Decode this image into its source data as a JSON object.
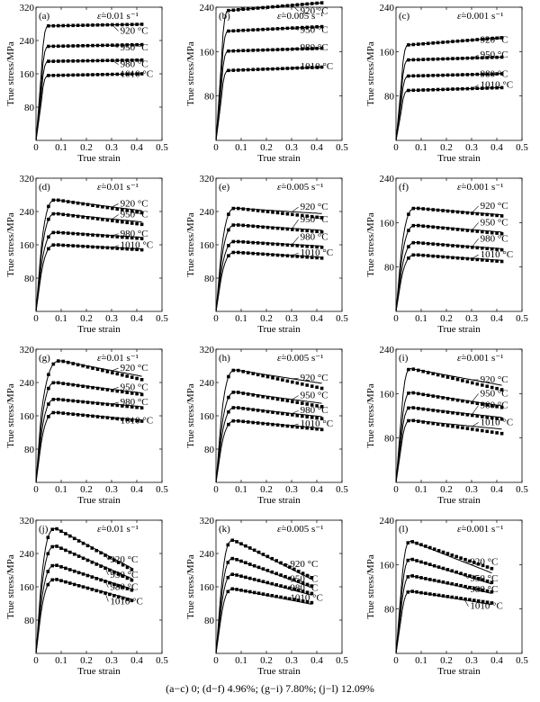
{
  "figure": {
    "caption": "(a−c) 0; (d−f) 4.96%; (g−i) 7.80%; (j−l) 12.09%",
    "xlabel": "True strain",
    "ylabel": "True stress/MPa",
    "rate_symbol": "ε̇"
  },
  "chart_data": [
    {
      "type": "line",
      "id": "a",
      "label": "(a)",
      "rate": "=0.01 s⁻¹",
      "xlim": [
        0,
        0.5
      ],
      "ylim": [
        0,
        320
      ],
      "xticks": [
        "0",
        "0.1",
        "0.2",
        "0.3",
        "0.4",
        "0.5"
      ],
      "yticks": [
        "80",
        "160",
        "240",
        "320"
      ],
      "xlabel": "True strain",
      "ylabel": "True stress/MPa",
      "xmax_data": 0.42,
      "series": [
        {
          "name": "920 °C",
          "label_y": 256,
          "peak": 275,
          "peak_x": 0.05,
          "end": 279,
          "offset": 0
        },
        {
          "name": "950 °C",
          "label_y": 216,
          "peak": 226,
          "peak_x": 0.05,
          "end": 230,
          "offset": 0
        },
        {
          "name": "980 °C",
          "label_y": 176,
          "peak": 190,
          "peak_x": 0.05,
          "end": 193,
          "offset": 0
        },
        {
          "name": "1010 °C",
          "label_y": 152,
          "peak": 156,
          "peak_x": 0.05,
          "end": 160,
          "offset": 0
        }
      ]
    },
    {
      "type": "line",
      "id": "b",
      "label": "(b)",
      "rate": "=0.005 s⁻¹",
      "xlim": [
        0,
        0.5
      ],
      "ylim": [
        0,
        240
      ],
      "xticks": [
        "0",
        "0.1",
        "0.2",
        "0.3",
        "0.4",
        "0.5"
      ],
      "yticks": [
        "80",
        "160",
        "240"
      ],
      "xlabel": "True strain",
      "ylabel": "True stress/MPa",
      "xmax_data": 0.42,
      "series": [
        {
          "name": "920 °C",
          "label_y": 228,
          "peak": 234,
          "peak_x": 0.05,
          "end": 248,
          "offset": 0
        },
        {
          "name": "950 °C",
          "label_y": 194,
          "peak": 197,
          "peak_x": 0.05,
          "end": 205,
          "offset": 0
        },
        {
          "name": "980 °C",
          "label_y": 162,
          "peak": 161,
          "peak_x": 0.05,
          "end": 166,
          "offset": 0
        },
        {
          "name": "1010 °C",
          "label_y": 128,
          "peak": 126,
          "peak_x": 0.05,
          "end": 132,
          "offset": 0
        }
      ]
    },
    {
      "type": "line",
      "id": "c",
      "label": "(c)",
      "rate": "=0.001 s⁻¹",
      "xlim": [
        0,
        0.5
      ],
      "ylim": [
        0,
        240
      ],
      "xticks": [
        "0",
        "0.1",
        "0.2",
        "0.3",
        "0.4",
        "0.5"
      ],
      "yticks": [
        "80",
        "160",
        "240"
      ],
      "xlabel": "True strain",
      "ylabel": "True stress/MPa",
      "xmax_data": 0.42,
      "series": [
        {
          "name": "920 °C",
          "label_y": 176,
          "peak": 172,
          "peak_x": 0.05,
          "end": 185,
          "offset": 0
        },
        {
          "name": "950 °C",
          "label_y": 149,
          "peak": 145,
          "peak_x": 0.05,
          "end": 150,
          "offset": 0
        },
        {
          "name": "980 °C",
          "label_y": 114,
          "peak": 116,
          "peak_x": 0.05,
          "end": 120,
          "offset": 0
        },
        {
          "name": "1010 °C",
          "label_y": 95,
          "peak": 90,
          "peak_x": 0.05,
          "end": 95,
          "offset": 0
        }
      ]
    },
    {
      "type": "line",
      "id": "d",
      "label": "(d)",
      "rate": "=0.01 s⁻¹",
      "xlim": [
        0,
        0.5
      ],
      "ylim": [
        0,
        320
      ],
      "xticks": [
        "0",
        "0.1",
        "0.2",
        "0.3",
        "0.4",
        "0.5"
      ],
      "yticks": [
        "80",
        "160",
        "240",
        "320"
      ],
      "xlabel": "True strain",
      "ylabel": "True stress/MPa",
      "xmax_data": 0.42,
      "series": [
        {
          "name": "920 °C",
          "label_y": 252,
          "peak": 268,
          "peak_x": 0.08,
          "end": 242,
          "offset": -5
        },
        {
          "name": "950 °C",
          "label_y": 226,
          "peak": 235,
          "peak_x": 0.08,
          "end": 215,
          "offset": -6
        },
        {
          "name": "980 °C",
          "label_y": 180,
          "peak": 190,
          "peak_x": 0.08,
          "end": 178,
          "offset": -3
        },
        {
          "name": "1010 °C",
          "label_y": 152,
          "peak": 160,
          "peak_x": 0.08,
          "end": 150,
          "offset": -2
        }
      ]
    },
    {
      "type": "line",
      "id": "e",
      "label": "(e)",
      "rate": "=0.005 s⁻¹",
      "xlim": [
        0,
        0.5
      ],
      "ylim": [
        0,
        320
      ],
      "xticks": [
        "0",
        "0.1",
        "0.2",
        "0.3",
        "0.4",
        "0.5"
      ],
      "yticks": [
        "80",
        "160",
        "240",
        "320"
      ],
      "xlabel": "True strain",
      "ylabel": "True stress/MPa",
      "xmax_data": 0.42,
      "series": [
        {
          "name": "920 °C",
          "label_y": 244,
          "peak": 248,
          "peak_x": 0.08,
          "end": 235,
          "offset": -10
        },
        {
          "name": "950 °C",
          "label_y": 214,
          "peak": 208,
          "peak_x": 0.08,
          "end": 195,
          "offset": -4
        },
        {
          "name": "980 °C",
          "label_y": 172,
          "peak": 168,
          "peak_x": 0.08,
          "end": 157,
          "offset": -3
        },
        {
          "name": "1010 °C",
          "label_y": 134,
          "peak": 142,
          "peak_x": 0.08,
          "end": 130,
          "offset": -2
        }
      ]
    },
    {
      "type": "line",
      "id": "f",
      "label": "(f)",
      "rate": "=0.001 s⁻¹",
      "xlim": [
        0,
        0.5
      ],
      "ylim": [
        0,
        240
      ],
      "xticks": [
        "0",
        "0.1",
        "0.2",
        "0.3",
        "0.4",
        "0.5"
      ],
      "yticks": [
        "80",
        "160",
        "240"
      ],
      "xlabel": "True strain",
      "ylabel": "True stress/MPa",
      "xmax_data": 0.42,
      "series": [
        {
          "name": "920 °C",
          "label_y": 185,
          "peak": 186,
          "peak_x": 0.08,
          "end": 174,
          "offset": -2
        },
        {
          "name": "950 °C",
          "label_y": 155,
          "peak": 155,
          "peak_x": 0.08,
          "end": 143,
          "offset": -3
        },
        {
          "name": "980 °C",
          "label_y": 126,
          "peak": 124,
          "peak_x": 0.08,
          "end": 113,
          "offset": -2
        },
        {
          "name": "1010 °C",
          "label_y": 97,
          "peak": 102,
          "peak_x": 0.08,
          "end": 92,
          "offset": -2
        }
      ]
    },
    {
      "type": "line",
      "id": "g",
      "label": "(g)",
      "rate": "=0.01 s⁻¹",
      "xlim": [
        0,
        0.5
      ],
      "ylim": [
        0,
        320
      ],
      "xticks": [
        "0",
        "0.1",
        "0.2",
        "0.3",
        "0.4",
        "0.5"
      ],
      "yticks": [
        "80",
        "160",
        "240",
        "320"
      ],
      "xlabel": "True strain",
      "ylabel": "True stress/MPa",
      "xmax_data": 0.42,
      "series": [
        {
          "name": "920 °C",
          "label_y": 268,
          "peak": 292,
          "peak_x": 0.1,
          "end": 255,
          "offset": -8
        },
        {
          "name": "950 °C",
          "label_y": 222,
          "peak": 240,
          "peak_x": 0.08,
          "end": 215,
          "offset": -4
        },
        {
          "name": "980 °C",
          "label_y": 186,
          "peak": 200,
          "peak_x": 0.08,
          "end": 182,
          "offset": -3
        },
        {
          "name": "1010 °C",
          "label_y": 142,
          "peak": 168,
          "peak_x": 0.08,
          "end": 150,
          "offset": -3
        }
      ]
    },
    {
      "type": "line",
      "id": "h",
      "label": "(h)",
      "rate": "=0.005 s⁻¹",
      "xlim": [
        0,
        0.5
      ],
      "ylim": [
        0,
        320
      ],
      "xticks": [
        "0",
        "0.1",
        "0.2",
        "0.3",
        "0.4",
        "0.5"
      ],
      "yticks": [
        "80",
        "160",
        "240",
        "320"
      ],
      "xlabel": "True strain",
      "ylabel": "True stress/MPa",
      "xmax_data": 0.42,
      "series": [
        {
          "name": "920 °C",
          "label_y": 244,
          "peak": 270,
          "peak_x": 0.08,
          "end": 238,
          "offset": -12
        },
        {
          "name": "950 °C",
          "label_y": 202,
          "peak": 217,
          "peak_x": 0.08,
          "end": 190,
          "offset": -8
        },
        {
          "name": "980 °C",
          "label_y": 166,
          "peak": 180,
          "peak_x": 0.08,
          "end": 158,
          "offset": -5
        },
        {
          "name": "1010 °C",
          "label_y": 134,
          "peak": 148,
          "peak_x": 0.08,
          "end": 130,
          "offset": -3
        }
      ]
    },
    {
      "type": "line",
      "id": "i",
      "label": "(i)",
      "rate": "=0.001 s⁻¹",
      "xlim": [
        0,
        0.5
      ],
      "ylim": [
        0,
        240
      ],
      "xticks": [
        "0",
        "0.1",
        "0.2",
        "0.3",
        "0.4",
        "0.5"
      ],
      "yticks": [
        "80",
        "160",
        "240"
      ],
      "xlabel": "True strain",
      "ylabel": "True stress/MPa",
      "xmax_data": 0.42,
      "series": [
        {
          "name": "920 °C",
          "label_y": 180,
          "peak": 205,
          "peak_x": 0.06,
          "end": 175,
          "offset": -8
        },
        {
          "name": "950 °C",
          "label_y": 155,
          "peak": 162,
          "peak_x": 0.06,
          "end": 138,
          "offset": -3
        },
        {
          "name": "980 °C",
          "label_y": 134,
          "peak": 135,
          "peak_x": 0.06,
          "end": 117,
          "offset": -3
        },
        {
          "name": "1010 °C",
          "label_y": 103,
          "peak": 112,
          "peak_x": 0.06,
          "end": 96,
          "offset": -8
        }
      ]
    },
    {
      "type": "line",
      "id": "j",
      "label": "(j)",
      "rate": "=0.01 s⁻¹",
      "xlim": [
        0,
        0.5
      ],
      "ylim": [
        0,
        320
      ],
      "xticks": [
        "0",
        "0.1",
        "0.2",
        "0.3",
        "0.4",
        "0.5"
      ],
      "yticks": [
        "80",
        "160",
        "240",
        "320"
      ],
      "xlabel": "True strain",
      "ylabel": "True stress/MPa",
      "xmax_data": 0.38,
      "series": [
        {
          "name": "920 °C",
          "label_y": 218,
          "peak": 300,
          "peak_x": 0.08,
          "end": 205,
          "offset": -4
        },
        {
          "name": "950 °C",
          "label_y": 182,
          "peak": 258,
          "peak_x": 0.08,
          "end": 180,
          "offset": -4
        },
        {
          "name": "980 °C",
          "label_y": 152,
          "peak": 212,
          "peak_x": 0.08,
          "end": 155,
          "offset": -3
        },
        {
          "name": "1010 °C",
          "label_y": 118,
          "peak": 178,
          "peak_x": 0.08,
          "end": 130,
          "offset": -3
        }
      ]
    },
    {
      "type": "line",
      "id": "k",
      "label": "(k)",
      "rate": "=0.005 s⁻¹",
      "xlim": [
        0,
        0.5
      ],
      "ylim": [
        0,
        320
      ],
      "xticks": [
        "0",
        "0.1",
        "0.2",
        "0.3",
        "0.4",
        "0.5"
      ],
      "yticks": [
        "80",
        "160",
        "240",
        "320"
      ],
      "xlabel": "True strain",
      "ylabel": "True stress/MPa",
      "xmax_data": 0.38,
      "series": [
        {
          "name": "920 °C",
          "label_y": 208,
          "peak": 272,
          "peak_x": 0.07,
          "end": 178,
          "offset": 4
        },
        {
          "name": "950 °C",
          "label_y": 172,
          "peak": 228,
          "peak_x": 0.07,
          "end": 158,
          "offset": 4
        },
        {
          "name": "980 °C",
          "label_y": 150,
          "peak": 190,
          "peak_x": 0.07,
          "end": 140,
          "offset": 4
        },
        {
          "name": "1010 °C",
          "label_y": 126,
          "peak": 155,
          "peak_x": 0.07,
          "end": 118,
          "offset": 4
        }
      ]
    },
    {
      "type": "line",
      "id": "l",
      "label": "(l)",
      "rate": "=0.001 s⁻¹",
      "xlim": [
        0,
        0.5
      ],
      "ylim": [
        0,
        240
      ],
      "xticks": [
        "0",
        "0.1",
        "0.2",
        "0.3",
        "0.4",
        "0.5"
      ],
      "yticks": [
        "80",
        "160",
        "240"
      ],
      "xlabel": "True strain",
      "ylabel": "True stress/MPa",
      "xmax_data": 0.38,
      "series": [
        {
          "name": "920 °C",
          "label_y": 160,
          "peak": 202,
          "peak_x": 0.06,
          "end": 145,
          "offset": 8
        },
        {
          "name": "950 °C",
          "label_y": 130,
          "peak": 170,
          "peak_x": 0.06,
          "end": 125,
          "offset": 3
        },
        {
          "name": "980 °C",
          "label_y": 110,
          "peak": 140,
          "peak_x": 0.06,
          "end": 108,
          "offset": 3
        },
        {
          "name": "1010 °C",
          "label_y": 80,
          "peak": 112,
          "peak_x": 0.06,
          "end": 88,
          "offset": 3
        }
      ]
    }
  ]
}
